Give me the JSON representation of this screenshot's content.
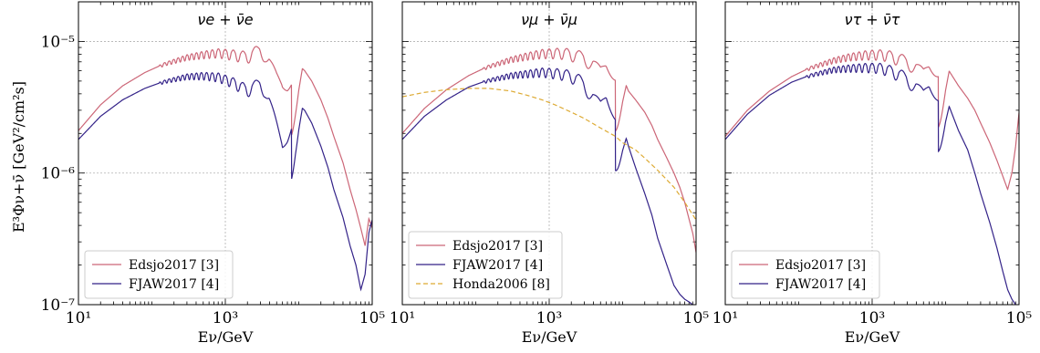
{
  "figure": {
    "ylabel": "E³Φν+ν̄ [GeV²/cm²s]"
  },
  "chart_data": [
    {
      "type": "line",
      "title": "νe + ν̄e",
      "xlabel": "Eν/GeV",
      "xscale": "log",
      "yscale": "log",
      "xlim": [
        10,
        100000
      ],
      "ylim": [
        1e-07,
        2e-05
      ],
      "xticks": [
        {
          "value": 10,
          "label": "10¹"
        },
        {
          "value": 1000,
          "label": "10³"
        },
        {
          "value": 100000,
          "label": "10⁵"
        }
      ],
      "yticks": [
        {
          "value": 1e-07,
          "label": "10⁻⁷"
        },
        {
          "value": 1e-06,
          "label": "10⁻⁶"
        },
        {
          "value": 1e-05,
          "label": "10⁻⁵"
        }
      ],
      "grid": true,
      "legend_position": "lower-left",
      "series": [
        {
          "name": "Edsjo2017 [3]",
          "color": "#cc6677",
          "x": [
            10,
            20,
            40,
            80,
            150,
            300,
            500,
            800,
            1200,
            1600,
            2000,
            2500,
            3000,
            3500,
            4000,
            5000,
            6000,
            7000,
            8000,
            9000,
            10000,
            12000,
            15000,
            20000,
            25000,
            30000,
            40000,
            50000,
            60000,
            70000,
            80000,
            90000,
            100000
          ],
          "y": [
            2.1e-06,
            3.3e-06,
            4.6e-06,
            5.8e-06,
            6.8e-06,
            7.7e-06,
            8.1e-06,
            8.4e-06,
            8.2e-06,
            8e-06,
            7.9e-06,
            8.5e-06,
            8.8e-06,
            8.2e-06,
            7.2e-06,
            5.4e-06,
            4.6e-06,
            4.9e-06,
            5.6e-06,
            6.2e-06,
            6.6e-06,
            6e-06,
            5e-06,
            3.6e-06,
            2.6e-06,
            1.9e-06,
            1.2e-06,
            7.5e-07,
            5.3e-07,
            3.8e-07,
            2.8e-07,
            4.5e-07,
            4e-07
          ]
        },
        {
          "name": "FJAW2017 [4]",
          "color": "#332288",
          "x": [
            10,
            20,
            40,
            80,
            150,
            300,
            500,
            800,
            1200,
            1600,
            2000,
            2500,
            3000,
            3500,
            4000,
            5000,
            6000,
            7000,
            8000,
            9000,
            10000,
            12000,
            15000,
            20000,
            25000,
            30000,
            40000,
            50000,
            60000,
            70000,
            80000,
            90000,
            100000
          ],
          "y": [
            1.8e-06,
            2.7e-06,
            3.6e-06,
            4.4e-06,
            5e-06,
            5.5e-06,
            5.6e-06,
            5.5e-06,
            5.1e-06,
            4.7e-06,
            4.4e-06,
            4.7e-06,
            4.9e-06,
            4.4e-06,
            3.6e-06,
            2.3e-06,
            1.6e-06,
            2e-06,
            2.6e-06,
            3.1e-06,
            3.3e-06,
            3e-06,
            2.4e-06,
            1.6e-06,
            1.1e-06,
            7.5e-07,
            4.6e-07,
            2.8e-07,
            2e-07,
            1.3e-07,
            1.7e-07,
            3.5e-07,
            4.6e-07
          ]
        }
      ]
    },
    {
      "type": "line",
      "title": "νμ + ν̄μ",
      "xlabel": "Eν/GeV",
      "xscale": "log",
      "yscale": "log",
      "xlim": [
        10,
        100000
      ],
      "ylim": [
        1e-07,
        2e-05
      ],
      "xticks": [
        {
          "value": 10,
          "label": "10¹"
        },
        {
          "value": 1000,
          "label": "10³"
        },
        {
          "value": 100000,
          "label": "10⁵"
        }
      ],
      "yticks": [
        {
          "value": 1e-07,
          "label": ""
        },
        {
          "value": 1e-06,
          "label": ""
        },
        {
          "value": 1e-05,
          "label": ""
        }
      ],
      "grid": true,
      "legend_position": "lower-left",
      "series": [
        {
          "name": "Edsjo2017 [3]",
          "color": "#cc6677",
          "x": [
            10,
            20,
            40,
            80,
            150,
            300,
            500,
            800,
            1200,
            1600,
            2000,
            2500,
            3000,
            4000,
            5000,
            6000,
            8000,
            10000,
            12000,
            15000,
            20000,
            25000,
            30000,
            40000,
            50000,
            60000,
            70000,
            80000,
            90000,
            100000
          ],
          "y": [
            2e-06,
            3.1e-06,
            4.3e-06,
            5.5e-06,
            6.5e-06,
            7.4e-06,
            7.9e-06,
            8.3e-06,
            8.4e-06,
            8.4e-06,
            8.2e-06,
            8e-06,
            7.7e-06,
            7e-06,
            6e-06,
            6.6e-06,
            6e-06,
            5.4e-06,
            4.2e-06,
            3.6e-06,
            2.9e-06,
            2.3e-06,
            1.8e-06,
            1.3e-06,
            1e-06,
            7.8e-07,
            6e-07,
            4.5e-07,
            3.5e-07,
            2.6e-07
          ]
        },
        {
          "name": "FJAW2017 [4]",
          "color": "#332288",
          "x": [
            10,
            20,
            40,
            80,
            150,
            300,
            500,
            800,
            1200,
            1600,
            2000,
            2500,
            3000,
            4000,
            5000,
            6000,
            8000,
            10000,
            12000,
            15000,
            20000,
            25000,
            30000,
            40000,
            50000,
            60000,
            70000,
            80000,
            90000,
            100000
          ],
          "y": [
            1.8e-06,
            2.7e-06,
            3.6e-06,
            4.5e-06,
            5.1e-06,
            5.6e-06,
            5.8e-06,
            6e-06,
            5.9e-06,
            5.8e-06,
            5.6e-06,
            5.3e-06,
            4.8e-06,
            3.9e-06,
            3.3e-06,
            3.8e-06,
            3e-06,
            2.3e-06,
            1.6e-06,
            1.1e-06,
            7e-07,
            4.8e-07,
            3.2e-07,
            2e-07,
            1.4e-07,
            1.2e-07,
            1.1e-07,
            1.05e-07,
            1e-07,
            1e-07
          ]
        },
        {
          "name": "Honda2006 [8]",
          "color": "#ddaa33",
          "dashed": true,
          "x": [
            10,
            20,
            40,
            80,
            150,
            300,
            500,
            800,
            1200,
            2000,
            3000,
            5000,
            8000,
            10000,
            15000,
            20000,
            30000,
            50000,
            70000,
            100000
          ],
          "y": [
            3.8e-06,
            4.1e-06,
            4.3e-06,
            4.4e-06,
            4.4e-06,
            4.2e-06,
            3.9e-06,
            3.6e-06,
            3.3e-06,
            2.9e-06,
            2.6e-06,
            2.2e-06,
            1.9e-06,
            1.7e-06,
            1.5e-06,
            1.3e-06,
            1.05e-06,
            7.8e-07,
            6e-07,
            4.4e-07
          ]
        }
      ]
    },
    {
      "type": "line",
      "title": "ντ + ν̄τ",
      "xlabel": "Eν/GeV",
      "xscale": "log",
      "yscale": "log",
      "xlim": [
        10,
        100000
      ],
      "ylim": [
        1e-07,
        2e-05
      ],
      "xticks": [
        {
          "value": 10,
          "label": "10¹"
        },
        {
          "value": 1000,
          "label": "10³"
        },
        {
          "value": 100000,
          "label": "10⁵"
        }
      ],
      "yticks": [
        {
          "value": 1e-07,
          "label": ""
        },
        {
          "value": 1e-06,
          "label": ""
        },
        {
          "value": 1e-05,
          "label": ""
        }
      ],
      "grid": true,
      "legend_position": "lower-left",
      "series": [
        {
          "name": "Edsjo2017 [3]",
          "color": "#cc6677",
          "x": [
            10,
            20,
            40,
            80,
            150,
            300,
            500,
            800,
            1200,
            1600,
            2000,
            2500,
            3000,
            4000,
            5000,
            6000,
            8000,
            10000,
            12000,
            15000,
            20000,
            25000,
            30000,
            40000,
            50000,
            60000,
            70000,
            80000,
            90000,
            100000
          ],
          "y": [
            1.9e-06,
            3e-06,
            4.2e-06,
            5.4e-06,
            6.4e-06,
            7.3e-06,
            7.8e-06,
            8.1e-06,
            8.2e-06,
            8.1e-06,
            7.8e-06,
            7.5e-06,
            7.2e-06,
            6.6e-06,
            5.8e-06,
            6.5e-06,
            6.4e-06,
            6.6e-06,
            5.6e-06,
            4.6e-06,
            3.7e-06,
            3e-06,
            2.4e-06,
            1.7e-06,
            1.25e-06,
            9.5e-07,
            7.5e-07,
            1e-06,
            1.6e-06,
            3e-06
          ]
        },
        {
          "name": "FJAW2017 [4]",
          "color": "#332288",
          "x": [
            10,
            20,
            40,
            80,
            150,
            300,
            500,
            800,
            1200,
            1600,
            2000,
            2500,
            3000,
            4000,
            5000,
            6000,
            8000,
            10000,
            12000,
            15000,
            20000,
            25000,
            30000,
            40000,
            50000,
            60000,
            70000,
            80000,
            90000,
            100000
          ],
          "y": [
            1.8e-06,
            2.8e-06,
            3.9e-06,
            4.9e-06,
            5.6e-06,
            6.2e-06,
            6.4e-06,
            6.5e-06,
            6.5e-06,
            6.3e-06,
            6e-06,
            5.7e-06,
            5.3e-06,
            4.7e-06,
            4e-06,
            4.6e-06,
            4.2e-06,
            3.8e-06,
            2.9e-06,
            2.1e-06,
            1.5e-06,
            1e-06,
            7e-07,
            4.2e-07,
            2.7e-07,
            1.8e-07,
            1.3e-07,
            1.1e-07,
            1e-07,
            1e-07
          ]
        }
      ]
    }
  ]
}
